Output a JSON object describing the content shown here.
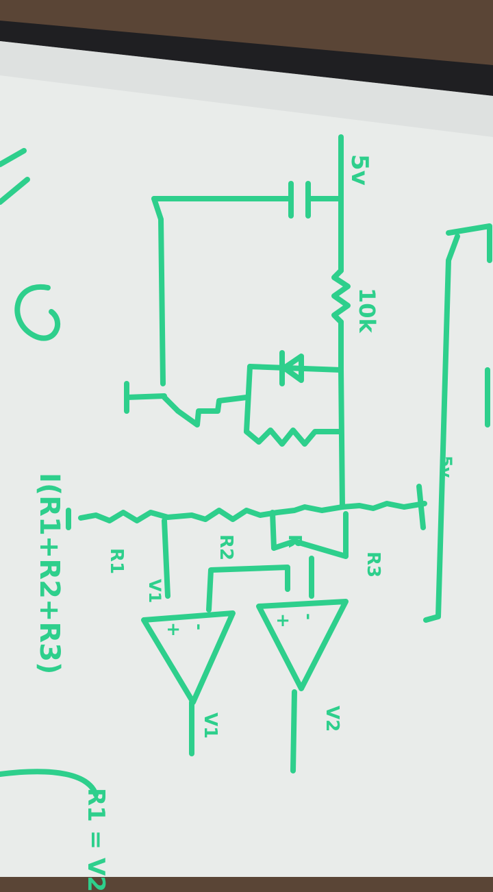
{
  "scene": {
    "board_color": "#e9ecea",
    "marker_color": "#2ecf8c",
    "frame_color": "#1f1f22",
    "background_color": "#5a4536"
  },
  "labels": {
    "supply_label": "5v",
    "resistor_label": "10k",
    "r1_label": "R1",
    "r2_label": "R2",
    "r3_label": "R3",
    "r_feedback_label": "R",
    "v1_label": "V1",
    "amp1_inverting": "-",
    "amp1_noninverting": "+",
    "amp2_inverting": "-",
    "amp2_noninverting": "+",
    "out1_label": "V1",
    "out2_label": "V2",
    "right_v_label": "5v",
    "left_equation": "I(R1+R2+R3)",
    "bottom_equation": "R1 = V2"
  }
}
